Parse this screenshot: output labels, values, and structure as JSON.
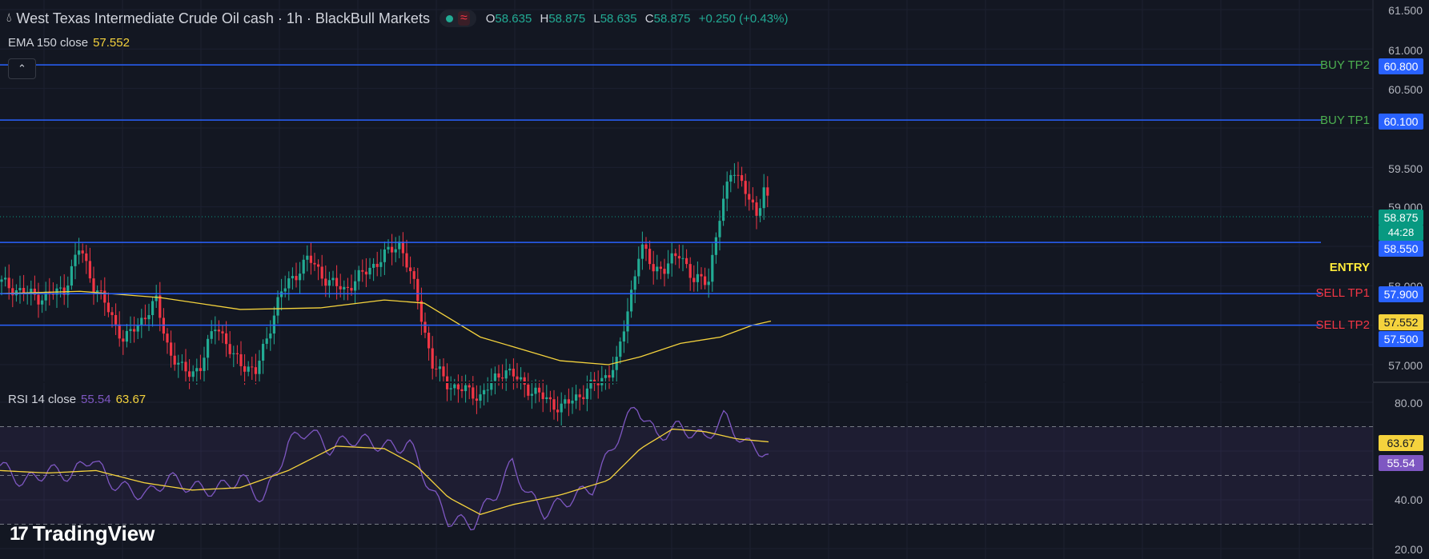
{
  "header": {
    "symbol_title": "West Texas Intermediate Crude Oil cash · 1h · BlackBull Markets",
    "open_label": "O",
    "open": "58.635",
    "high_label": "H",
    "high": "58.875",
    "low_label": "L",
    "low": "58.635",
    "close_label": "C",
    "close": "58.875",
    "change": "+0.250 (+0.43%)"
  },
  "ema_legend": {
    "label": "EMA 150 close",
    "value": "57.552"
  },
  "rsi_legend": {
    "label": "RSI 14 close",
    "rsi": "55.54",
    "rsi_ma": "63.67"
  },
  "price_axis_ticks": [
    "61.500",
    "61.000",
    "60.500",
    "59.500",
    "59.000",
    "58.000",
    "57.000"
  ],
  "rsi_axis_ticks": [
    "80.00",
    "40.00",
    "20.00"
  ],
  "levels": [
    {
      "name": "BUY TP2",
      "price": "60.800",
      "label_color": "#4caf50"
    },
    {
      "name": "BUY TP1",
      "price": "60.100",
      "label_color": "#4caf50"
    },
    {
      "name": "ENTRY",
      "price": "58.550",
      "label_color": "#ffeb3b"
    },
    {
      "name": "SELL TP1",
      "price": "57.900",
      "label_color": "#f23645"
    },
    {
      "name": "SELL TP2",
      "price": "57.500",
      "label_color": "#f23645"
    }
  ],
  "price_tags": {
    "last_price": "58.875",
    "countdown": "44:28",
    "ema": "57.552",
    "rsi_ma": "63.67",
    "rsi": "55.54"
  },
  "colors": {
    "background": "#131722",
    "up": "#22ab94",
    "down": "#f23645",
    "level_line": "#2962ff",
    "ema": "#f5d33d",
    "rsi": "#7e57c2"
  },
  "branding": {
    "logo_text": "TradingView"
  },
  "chart_data": {
    "type": "candlestick",
    "timeframe": "1h",
    "price_range": [
      56.8,
      61.6
    ],
    "rsi_range": [
      20,
      85
    ],
    "rsi_bands": [
      70,
      50,
      30
    ],
    "last_close": 58.875,
    "ema150_last": 57.552,
    "rsi_last": 55.54,
    "rsi_ma_last": 63.67
  }
}
